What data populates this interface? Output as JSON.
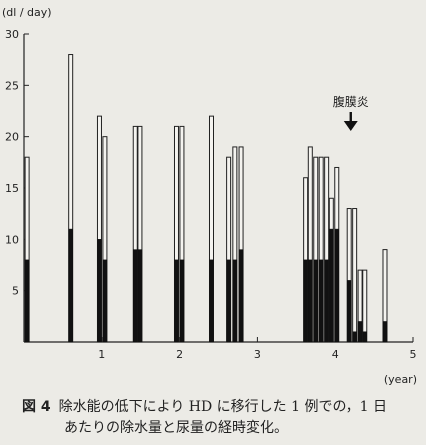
{
  "chart_data": {
    "type": "bar",
    "y_unit": "(dl / day)",
    "x_unit": "(year)",
    "ylim": [
      0,
      30
    ],
    "xlim": [
      0,
      5
    ],
    "y_ticks": [
      5,
      10,
      15,
      20,
      25,
      30
    ],
    "x_ticks": [
      1,
      2,
      3,
      4,
      5
    ],
    "annotation": {
      "text": "腹膜炎",
      "x": 4.2,
      "arrow": "down"
    },
    "series": [
      {
        "name": "除水量",
        "role": "bar height (outlined)"
      },
      {
        "name": "尿量",
        "role": "filled lower part"
      }
    ],
    "points": [
      {
        "x": 0.04,
        "total": 18.0,
        "urine": 8.0
      },
      {
        "x": 0.6,
        "total": 28.0,
        "urine": 11.0
      },
      {
        "x": 0.97,
        "total": 22.0,
        "urine": 10.0
      },
      {
        "x": 1.04,
        "total": 20.0,
        "urine": 8.0
      },
      {
        "x": 1.43,
        "total": 21.0,
        "urine": 9.0
      },
      {
        "x": 1.49,
        "total": 21.0,
        "urine": 9.0
      },
      {
        "x": 1.96,
        "total": 21.0,
        "urine": 8.0
      },
      {
        "x": 2.03,
        "total": 21.0,
        "urine": 8.0
      },
      {
        "x": 2.41,
        "total": 22.0,
        "urine": 8.0
      },
      {
        "x": 2.63,
        "total": 18.0,
        "urine": 8.0
      },
      {
        "x": 2.71,
        "total": 19.0,
        "urine": 8.0
      },
      {
        "x": 2.79,
        "total": 19.0,
        "urine": 9.0
      },
      {
        "x": 3.62,
        "total": 16.0,
        "urine": 8.0
      },
      {
        "x": 3.68,
        "total": 19.0,
        "urine": 8.0
      },
      {
        "x": 3.75,
        "total": 18.0,
        "urine": 8.0
      },
      {
        "x": 3.82,
        "total": 18.0,
        "urine": 8.0
      },
      {
        "x": 3.89,
        "total": 18.0,
        "urine": 8.0
      },
      {
        "x": 3.95,
        "total": 14.0,
        "urine": 11.0
      },
      {
        "x": 4.02,
        "total": 17.0,
        "urine": 11.0
      },
      {
        "x": 4.18,
        "total": 13.0,
        "urine": 6.0
      },
      {
        "x": 4.25,
        "total": 13.0,
        "urine": 1.0
      },
      {
        "x": 4.32,
        "total": 7.0,
        "urine": 2.0
      },
      {
        "x": 4.38,
        "total": 7.0,
        "urine": 1.0
      },
      {
        "x": 4.64,
        "total": 9.0,
        "urine": 2.0
      }
    ]
  },
  "caption": {
    "figure_no": "図 4",
    "line1": "除水能の低下により HD に移行した 1 例での，1 日",
    "line2": "あたりの除水量と尿量の経時変化。"
  }
}
